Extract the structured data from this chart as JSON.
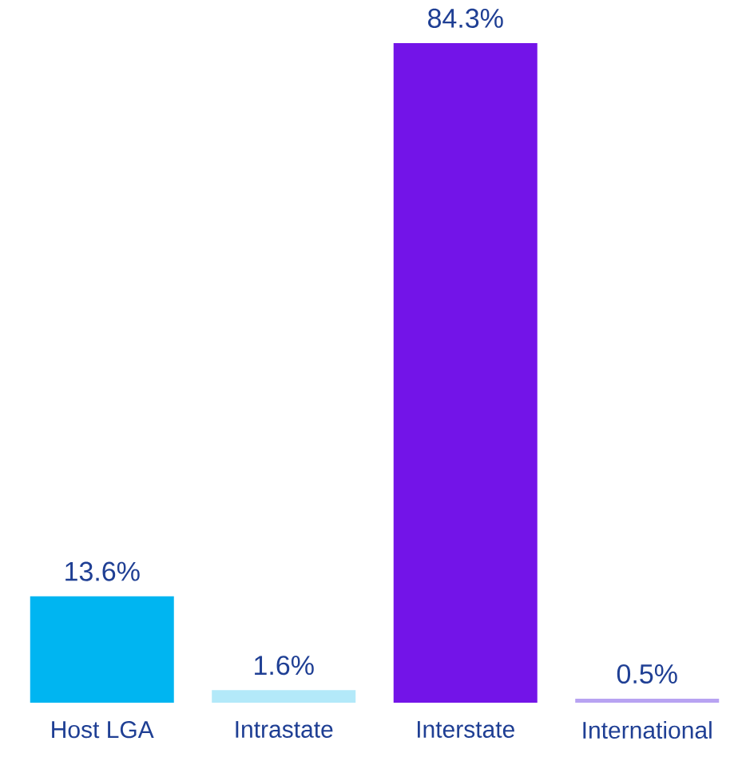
{
  "chart_data": {
    "type": "bar",
    "categories": [
      "Host LGA",
      "Intrastate",
      "Interstate",
      "International"
    ],
    "values": [
      13.6,
      1.6,
      84.3,
      0.5
    ],
    "colors": [
      "#00b5f1",
      "#b3e9f9",
      "#7314e8",
      "#b8a3f2"
    ],
    "value_labels": [
      "13.6%",
      "1.6%",
      "84.3%",
      "0.5%"
    ]
  }
}
